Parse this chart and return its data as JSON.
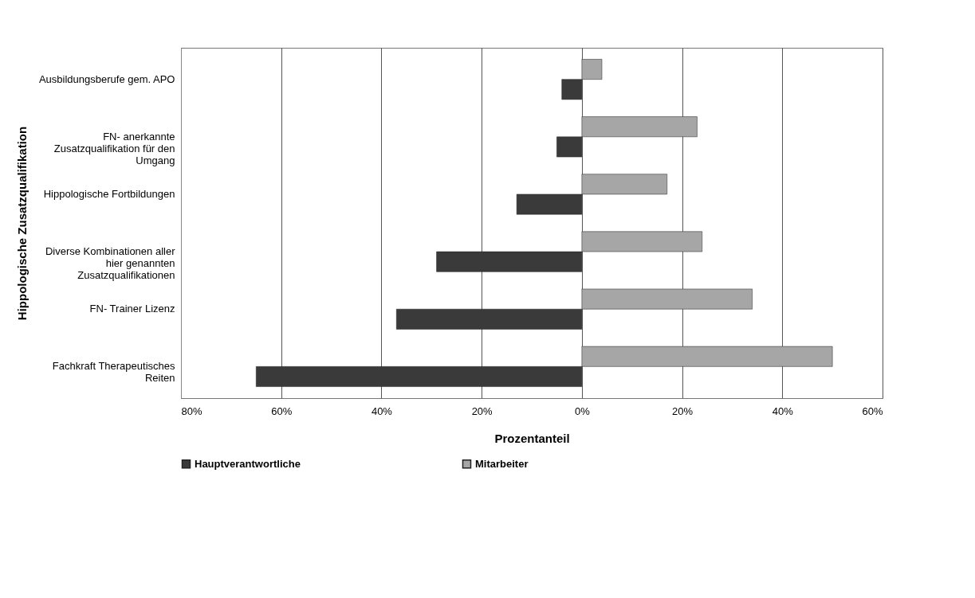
{
  "chart_data": {
    "type": "bar",
    "orientation": "horizontal",
    "ylabel": "Hippologische Zusatzqualifikation",
    "xlabel": "Prozentanteil",
    "categories": [
      "Ausbildungsberufe gem. APO",
      "FN- anerkannte Zusatzqualifikation für den Umgang",
      "Hippologische Fortbildungen",
      "Diverse Kombinationen aller hier genannten Zusatzqualifikationen",
      "FN- Trainer Lizenz",
      "Fachkraft Therapeutisches Reiten"
    ],
    "series": [
      {
        "name": "Hauptverantwortliche",
        "color": "#3a3a3a",
        "values": [
          -4,
          -5,
          -13,
          -29,
          -37,
          -65
        ]
      },
      {
        "name": "Mitarbeiter",
        "color": "#a6a6a6",
        "values": [
          4,
          23,
          17,
          24,
          34,
          50
        ]
      }
    ],
    "xlim": [
      -80,
      60
    ],
    "xticks": [
      {
        "value": -80,
        "label": "80%"
      },
      {
        "value": -60,
        "label": "60%"
      },
      {
        "value": -40,
        "label": "40%"
      },
      {
        "value": -20,
        "label": "20%"
      },
      {
        "value": 0,
        "label": "0%"
      },
      {
        "value": 20,
        "label": "20%"
      },
      {
        "value": 40,
        "label": "40%"
      },
      {
        "value": 60,
        "label": "60%"
      }
    ],
    "grid": "x",
    "legend": "bottom"
  }
}
